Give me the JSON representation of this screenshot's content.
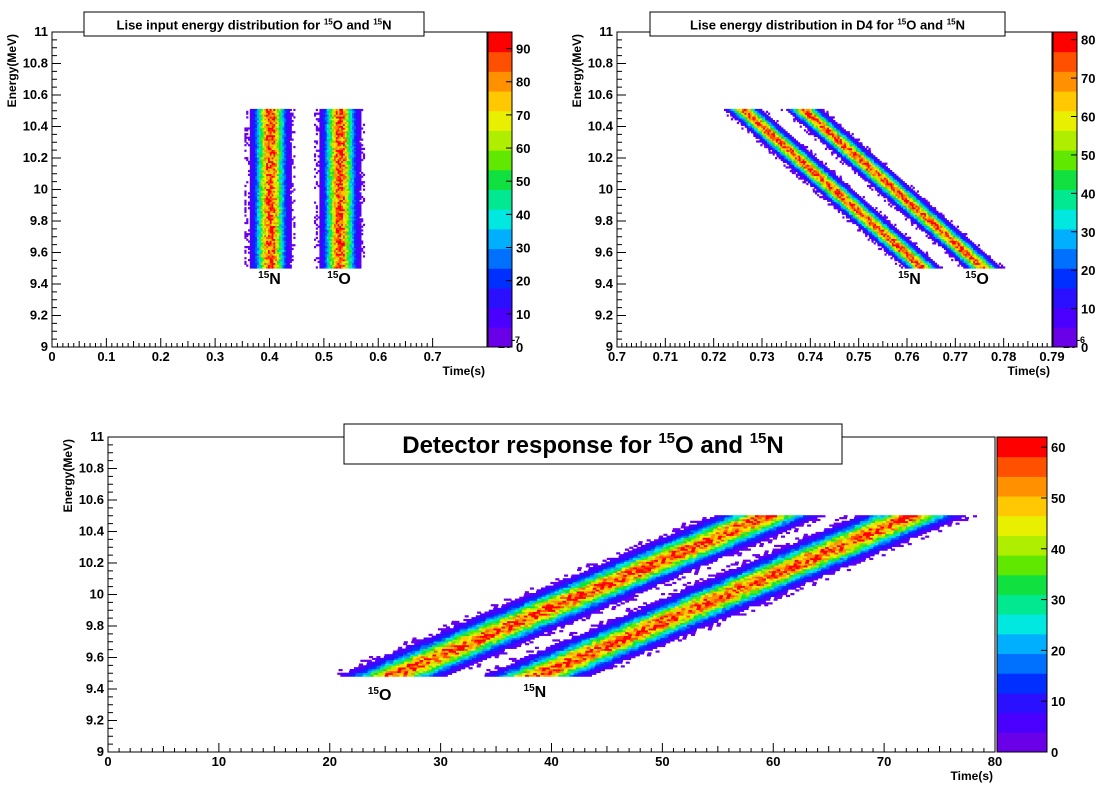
{
  "chart_data": [
    {
      "id": "tl",
      "type": "heatmap",
      "title": {
        "pre": "Lise input energy distribution for ",
        "s1": "15",
        "e1": "O",
        "mid": " and ",
        "s2": "15",
        "e2": "N"
      },
      "xlabel": "Time(s)",
      "ylabel": "Energy(MeV)",
      "xlim": [
        0,
        0.8
      ],
      "ylim": [
        9,
        11
      ],
      "x_ticks": [
        0,
        0.1,
        0.2,
        0.3,
        0.4,
        0.5,
        0.6,
        0.7
      ],
      "x_tick_labels": [
        "0",
        "0.1",
        "0.2",
        "0.3",
        "0.4",
        "0.5",
        "0.6",
        "0.7"
      ],
      "y_ticks": [
        9,
        9.2,
        9.4,
        9.6,
        9.8,
        10,
        10.2,
        10.4,
        10.6,
        10.8,
        11
      ],
      "y_tick_labels": [
        "9",
        "9.2",
        "9.4",
        "9.6",
        "9.8",
        "10",
        "10.2",
        "10.4",
        "10.6",
        "10.8",
        "11"
      ],
      "x_exponent": {
        "base": "×10",
        "exp": "-7"
      },
      "z_range": [
        0,
        95
      ],
      "z_ticks": [
        0,
        10,
        20,
        30,
        40,
        50,
        60,
        70,
        80,
        90
      ],
      "z_tick_labels": [
        "0",
        "10",
        "20",
        "30",
        "40",
        "50",
        "60",
        "70",
        "80",
        "90"
      ],
      "bands": [
        {
          "label_sup": "15",
          "label": "N",
          "t_at_emin": 0.4,
          "t_at_emax": 0.4,
          "half_width": 0.022,
          "e_range": [
            9.5,
            10.5
          ],
          "label_pos": [
            0.4,
            9.4
          ],
          "peak": 95
        },
        {
          "label_sup": "15",
          "label": "O",
          "t_at_emin": 0.528,
          "t_at_emax": 0.528,
          "half_width": 0.022,
          "e_range": [
            9.5,
            10.5
          ],
          "label_pos": [
            0.528,
            9.4
          ],
          "peak": 90
        }
      ]
    },
    {
      "id": "tr",
      "type": "heatmap",
      "title": {
        "pre": "Lise energy distribution in D4 for ",
        "s1": "15",
        "e1": "O",
        "mid": " and ",
        "s2": "15",
        "e2": "N"
      },
      "xlabel": "Time(s)",
      "ylabel": "Energy(MeV)",
      "xlim": [
        0.7,
        0.79
      ],
      "ylim": [
        9,
        11
      ],
      "x_ticks": [
        0.7,
        0.71,
        0.72,
        0.73,
        0.74,
        0.75,
        0.76,
        0.77,
        0.78,
        0.79
      ],
      "x_tick_labels": [
        "0.7",
        "0.71",
        "0.72",
        "0.73",
        "0.74",
        "0.75",
        "0.76",
        "0.77",
        "0.78",
        "0.79"
      ],
      "y_ticks": [
        9,
        9.2,
        9.4,
        9.6,
        9.8,
        10,
        10.2,
        10.4,
        10.6,
        10.8,
        11
      ],
      "y_tick_labels": [
        "9",
        "9.2",
        "9.4",
        "9.6",
        "9.8",
        "10",
        "10.2",
        "10.4",
        "10.6",
        "10.8",
        "11"
      ],
      "x_exponent": {
        "base": "×10",
        "exp": "-6"
      },
      "z_range": [
        0,
        82
      ],
      "z_ticks": [
        0,
        10,
        20,
        30,
        40,
        50,
        60,
        70,
        80
      ],
      "z_tick_labels": [
        "0",
        "10",
        "20",
        "30",
        "40",
        "50",
        "60",
        "70",
        "80"
      ],
      "bands": [
        {
          "label_sup": "15",
          "label": "N",
          "t_at_emin": 0.763,
          "t_at_emax": 0.726,
          "half_width": 0.0022,
          "e_range": [
            9.5,
            10.5
          ],
          "label_pos": [
            0.7605,
            9.4
          ],
          "peak": 82
        },
        {
          "label_sup": "15",
          "label": "O",
          "t_at_emin": 0.7755,
          "t_at_emax": 0.7385,
          "half_width": 0.0022,
          "e_range": [
            9.5,
            10.5
          ],
          "label_pos": [
            0.7745,
            9.4
          ],
          "peak": 80
        }
      ]
    },
    {
      "id": "bottom",
      "type": "heatmap",
      "title": {
        "pre": "Detector response for ",
        "s1": "15",
        "e1": "O",
        "mid": " and ",
        "s2": "15",
        "e2": "N"
      },
      "xlabel": "Time(s)",
      "ylabel": "Energy(MeV)",
      "xlim": [
        0,
        80
      ],
      "ylim": [
        9,
        11
      ],
      "x_ticks": [
        0,
        10,
        20,
        30,
        40,
        50,
        60,
        70,
        80
      ],
      "x_tick_labels": [
        "0",
        "10",
        "20",
        "30",
        "40",
        "50",
        "60",
        "70",
        "80"
      ],
      "y_ticks": [
        9,
        9.2,
        9.4,
        9.6,
        9.8,
        10,
        10.2,
        10.4,
        10.6,
        10.8,
        11
      ],
      "y_tick_labels": [
        "9",
        "9.2",
        "9.4",
        "9.6",
        "9.8",
        "10",
        "10.2",
        "10.4",
        "10.6",
        "10.8",
        "11"
      ],
      "x_exponent": null,
      "z_range": [
        0,
        62
      ],
      "z_ticks": [
        0,
        10,
        20,
        30,
        40,
        50,
        60
      ],
      "z_tick_labels": [
        "0",
        "10",
        "20",
        "30",
        "40",
        "50",
        "60"
      ],
      "bands": [
        {
          "label_sup": "15",
          "label": "O",
          "t_at_emin": 25.5,
          "t_at_emax": 59.5,
          "half_width": 2.8,
          "e_range": [
            9.48,
            10.5
          ],
          "label_pos": [
            24.5,
            9.33
          ],
          "peak": 62
        },
        {
          "label_sup": "15",
          "label": "N",
          "t_at_emin": 38.5,
          "t_at_emax": 72.5,
          "half_width": 2.8,
          "e_range": [
            9.48,
            10.5
          ],
          "label_pos": [
            38.5,
            9.35
          ],
          "peak": 58
        }
      ]
    }
  ]
}
